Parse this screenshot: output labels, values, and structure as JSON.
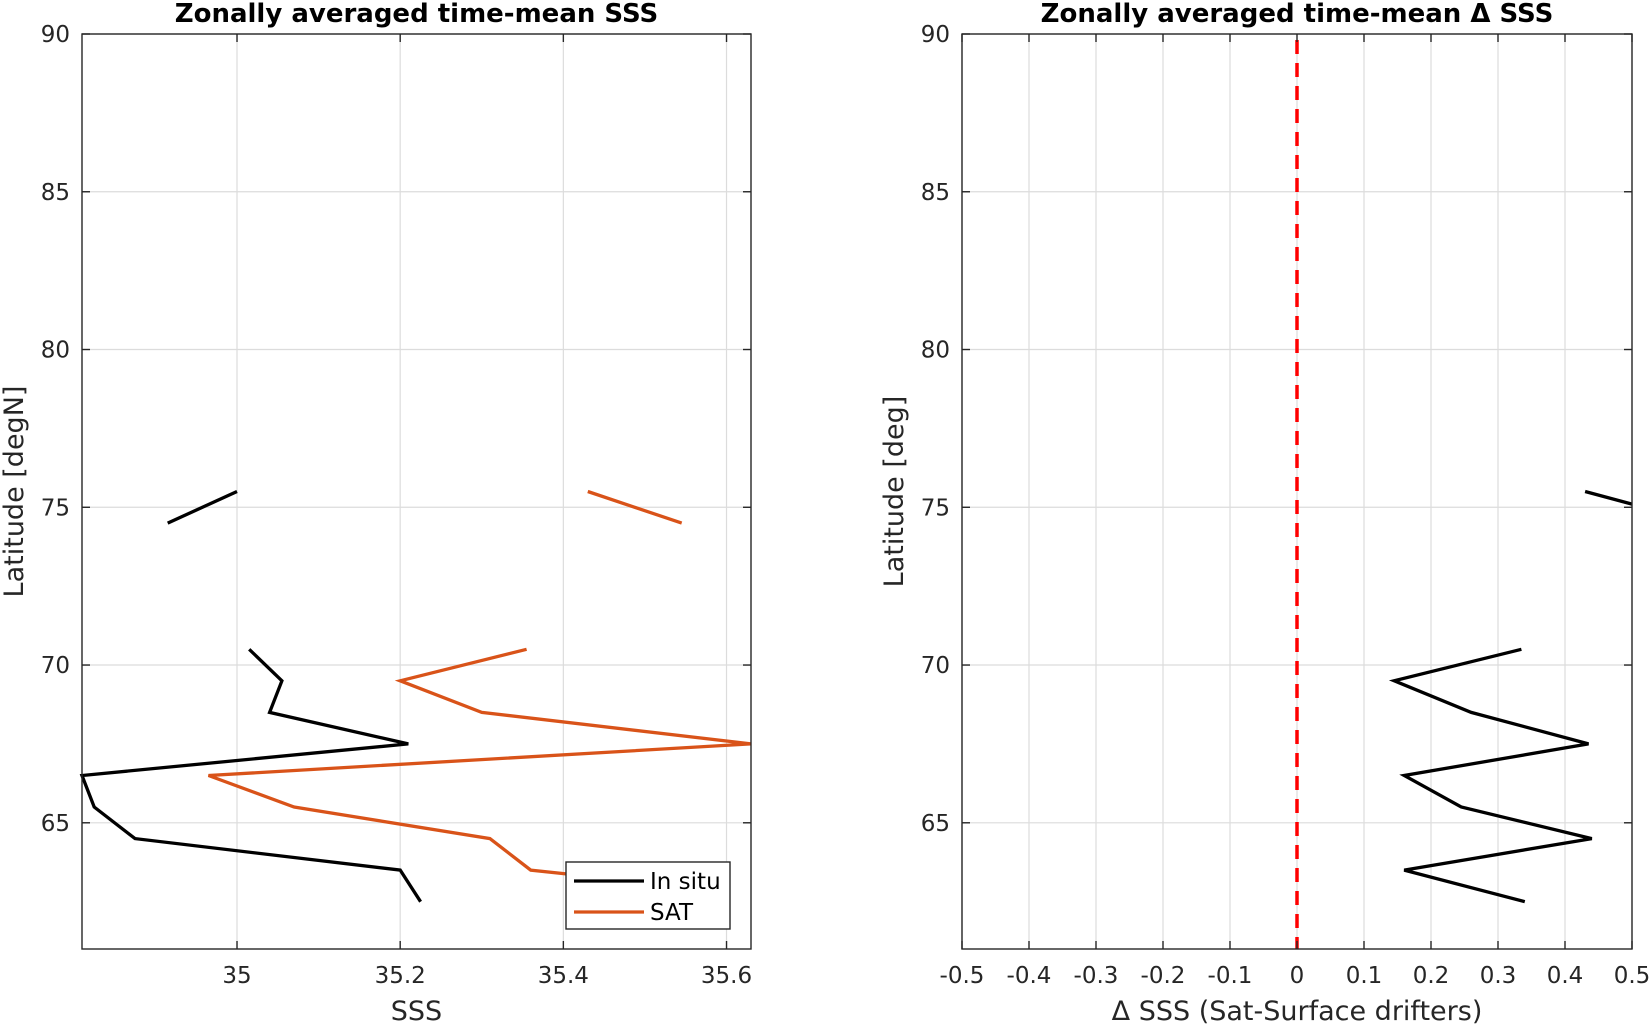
{
  "chart_data": [
    {
      "type": "line",
      "title": "Zonally averaged time-mean SSS",
      "xlabel": "SSS",
      "ylabel": "Latitude [degN]",
      "xlim": [
        34.81,
        35.63
      ],
      "ylim": [
        61,
        90
      ],
      "xticks": [
        35,
        35.2,
        35.4,
        35.6
      ],
      "xtick_labels": [
        "35",
        "35.2",
        "35.4",
        "35.6"
      ],
      "yticks": [
        65,
        70,
        75,
        80,
        85,
        90
      ],
      "ytick_labels": [
        "65",
        "70",
        "75",
        "80",
        "85",
        "90"
      ],
      "grid": true,
      "legend": "bottom-right",
      "series": [
        {
          "name": "In situ",
          "color": "#000000",
          "segments": [
            [
              [
                34.915,
                74.5
              ],
              [
                35.0,
                75.5
              ]
            ],
            [
              [
                35.015,
                70.5
              ],
              [
                35.055,
                69.5
              ],
              [
                35.04,
                68.5
              ],
              [
                35.21,
                67.5
              ],
              [
                34.81,
                66.5
              ],
              [
                34.825,
                65.5
              ],
              [
                34.875,
                64.5
              ],
              [
                35.2,
                63.5
              ],
              [
                35.225,
                62.5
              ]
            ]
          ]
        },
        {
          "name": "SAT",
          "color": "#d95319",
          "segments": [
            [
              [
                35.43,
                75.5
              ],
              [
                35.545,
                74.5
              ]
            ],
            [
              [
                35.355,
                70.5
              ],
              [
                35.2,
                69.5
              ],
              [
                35.3,
                68.5
              ],
              [
                35.63,
                67.5
              ],
              [
                34.965,
                66.5
              ],
              [
                35.07,
                65.5
              ],
              [
                35.31,
                64.5
              ],
              [
                35.36,
                63.5
              ],
              [
                35.47,
                63.2
              ]
            ]
          ]
        }
      ]
    },
    {
      "type": "line",
      "title": "Zonally averaged time-mean Δ SSS",
      "xlabel": "Δ SSS (Sat-Surface drifters)",
      "ylabel": "Latitude [deg]",
      "xlim": [
        -0.5,
        0.5
      ],
      "ylim": [
        61,
        90
      ],
      "xticks": [
        -0.5,
        -0.4,
        -0.3,
        -0.2,
        -0.1,
        0,
        0.1,
        0.2,
        0.3,
        0.4,
        0.5
      ],
      "xtick_labels": [
        "-0.5",
        "-0.4",
        "-0.3",
        "-0.2",
        "-0.1",
        "0",
        "0.1",
        "0.2",
        "0.3",
        "0.4",
        "0.5"
      ],
      "yticks": [
        65,
        70,
        75,
        80,
        85,
        90
      ],
      "ytick_labels": [
        "65",
        "70",
        "75",
        "80",
        "85",
        "90"
      ],
      "grid": true,
      "reference_line": {
        "x": 0,
        "color": "#ff0000",
        "style": "dashed"
      },
      "series": [
        {
          "color": "#000000",
          "segments": [
            [
              [
                0.43,
                75.5
              ],
              [
                0.5,
                75.1
              ]
            ],
            [
              [
                0.335,
                70.5
              ],
              [
                0.145,
                69.5
              ],
              [
                0.26,
                68.5
              ],
              [
                0.435,
                67.5
              ],
              [
                0.16,
                66.5
              ],
              [
                0.245,
                65.5
              ],
              [
                0.44,
                64.5
              ],
              [
                0.16,
                63.5
              ],
              [
                0.34,
                62.5
              ]
            ]
          ]
        }
      ]
    }
  ]
}
